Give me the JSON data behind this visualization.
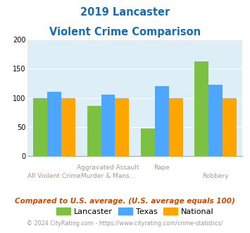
{
  "title_line1": "2019 Lancaster",
  "title_line2": "Violent Crime Comparison",
  "lancaster": [
    99,
    86,
    48,
    163
  ],
  "texas": [
    110,
    105,
    120,
    122
  ],
  "national": [
    100,
    100,
    100,
    100
  ],
  "lancaster_color": "#7dc142",
  "texas_color": "#4da6ff",
  "national_color": "#ffa500",
  "bg_color": "#ddeef6",
  "title_color": "#1a6bb5",
  "ylim": [
    0,
    200
  ],
  "yticks": [
    0,
    50,
    100,
    150,
    200
  ],
  "subtitle_text": "Compared to U.S. average. (U.S. average equals 100)",
  "footer_text": "© 2024 CityRating.com - https://www.cityrating.com/crime-statistics/",
  "subtitle_color": "#c84b00",
  "footer_color": "#999999",
  "label_color": "#aa9988",
  "row1_labels": [
    "",
    "Aggravated Assault",
    "Rape",
    ""
  ],
  "row2_labels": [
    "All Violent Crime",
    "Murder & Mans...",
    "",
    "Robbery"
  ],
  "x_positions": [
    0,
    1,
    2,
    3
  ]
}
